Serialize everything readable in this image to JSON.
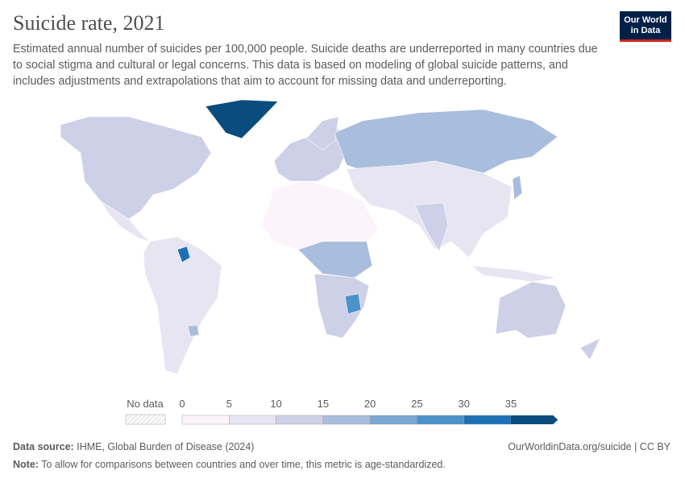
{
  "header": {
    "title": "Suicide rate, 2021",
    "subtitle": "Estimated annual number of suicides per 100,000 people. Suicide deaths are underreported in many countries due to social stigma and cultural or legal concerns. This data is based on modeling of global suicide patterns, and includes adjustments and extrapolations that aim to account for missing data and underreporting.",
    "logo": [
      "Our World",
      "in Data"
    ]
  },
  "legend": {
    "no_data": "No data",
    "ticks": [
      0,
      5,
      10,
      15,
      20,
      25,
      30,
      35
    ],
    "colors": [
      "#fbf4fa",
      "#e7e5f2",
      "#cdd0e7",
      "#a9bddd",
      "#7ba8d3",
      "#4b92c8",
      "#1d70b4",
      "#0b4c7f"
    ]
  },
  "footer": {
    "source_label": "Data source:",
    "source": "IHME, Global Burden of Disease (2024)",
    "url": "OurWorldinData.org/suicide | CC BY",
    "note_label": "Note:",
    "note": "To allow for comparisons between countries and over time, this metric is age-standardized."
  }
}
